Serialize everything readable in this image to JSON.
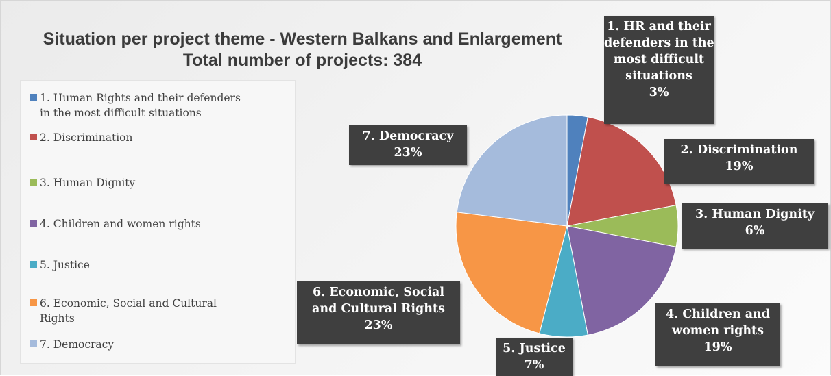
{
  "chart_data": {
    "type": "pie",
    "title": "Situation per project theme - Western Balkans and Enlargement",
    "subtitle": "Total number of projects: 384",
    "legend_position": "left",
    "slices": [
      {
        "legend": "1. Human Rights and their defenders in the most difficult situations",
        "legend_lines": [
          "1. Human Rights and their defenders",
          "in the most difficult situations"
        ],
        "label_lines": [
          "1. HR and their",
          "defenders in the",
          "most difficult",
          "situations"
        ],
        "percent_label": "3%",
        "value": 3,
        "color": "#4f81bd"
      },
      {
        "legend": "2. Discrimination",
        "legend_lines": [
          "2. Discrimination"
        ],
        "label_lines": [
          "2. Discrimination"
        ],
        "percent_label": "19%",
        "value": 19,
        "color": "#c0504d"
      },
      {
        "legend": "3. Human Dignity",
        "legend_lines": [
          "3. Human Dignity"
        ],
        "label_lines": [
          "3. Human Dignity"
        ],
        "percent_label": "6%",
        "value": 6,
        "color": "#9bbb59"
      },
      {
        "legend": "4. Children and women rights",
        "legend_lines": [
          "4. Children and women rights"
        ],
        "label_lines": [
          "4. Children and",
          "women rights"
        ],
        "percent_label": "19%",
        "value": 19,
        "color": "#8064a2"
      },
      {
        "legend": "5. Justice",
        "legend_lines": [
          "5. Justice"
        ],
        "label_lines": [
          "5. Justice"
        ],
        "percent_label": "7%",
        "value": 7,
        "color": "#4bacc6"
      },
      {
        "legend": "6. Economic, Social and Cultural Rights",
        "legend_lines": [
          "6. Economic, Social and Cultural",
          "Rights"
        ],
        "label_lines": [
          "6. Economic, Social",
          "and Cultural Rights"
        ],
        "percent_label": "23%",
        "value": 23,
        "color": "#f79646"
      },
      {
        "legend": "7. Democracy",
        "legend_lines": [
          "7. Democracy"
        ],
        "label_lines": [
          "7. Democracy"
        ],
        "percent_label": "23%",
        "value": 23,
        "color": "#a5bbdc"
      }
    ]
  }
}
